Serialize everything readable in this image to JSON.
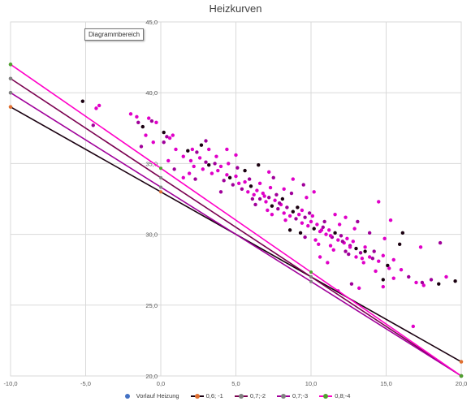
{
  "chart_data": {
    "type": "scatter",
    "title": "Heizkurven",
    "xlim": [
      -10,
      20
    ],
    "ylim": [
      20,
      45
    ],
    "x_ticks": [
      "-10,0",
      "-5,0",
      "0,0",
      "5,0",
      "10,0",
      "15,0",
      "20,0"
    ],
    "y_ticks": [
      "20,0",
      "25,0",
      "30,0",
      "35,0",
      "40,0",
      "45,0"
    ],
    "grid": true,
    "legend_position": "bottom",
    "series": [
      {
        "name": "Vorlauf Heizung",
        "kind": "scatter",
        "color": "#e000c8",
        "dark_color": "#1a0010",
        "mid_color": "#a0009a",
        "points": [
          [
            -5.2,
            39.4
          ],
          [
            -4.3,
            38.9
          ],
          [
            -4.1,
            39.1
          ],
          [
            -4.5,
            37.7
          ],
          [
            -2.0,
            38.5
          ],
          [
            -1.6,
            38.3
          ],
          [
            -1.5,
            37.9
          ],
          [
            -1.2,
            37.6
          ],
          [
            -0.8,
            38.2
          ],
          [
            -0.6,
            38.0
          ],
          [
            -1.0,
            37.0
          ],
          [
            -0.5,
            36.5
          ],
          [
            -1.3,
            36.2
          ],
          [
            -0.3,
            37.9
          ],
          [
            0.2,
            37.2
          ],
          [
            0.4,
            36.9
          ],
          [
            0.6,
            36.8
          ],
          [
            0.8,
            37.0
          ],
          [
            0.2,
            36.5
          ],
          [
            1.0,
            36.0
          ],
          [
            1.5,
            35.5
          ],
          [
            1.8,
            35.9
          ],
          [
            2.0,
            35.2
          ],
          [
            2.2,
            34.8
          ],
          [
            2.4,
            35.8
          ],
          [
            2.6,
            35.4
          ],
          [
            2.8,
            34.6
          ],
          [
            3.0,
            35.1
          ],
          [
            3.2,
            34.9
          ],
          [
            3.4,
            34.3
          ],
          [
            3.6,
            35.0
          ],
          [
            3.8,
            34.5
          ],
          [
            4.0,
            34.8
          ],
          [
            4.2,
            33.8
          ],
          [
            4.4,
            34.2
          ],
          [
            4.6,
            34.0
          ],
          [
            4.8,
            33.5
          ],
          [
            5.0,
            34.1
          ],
          [
            5.2,
            33.6
          ],
          [
            5.4,
            33.2
          ],
          [
            5.6,
            33.7
          ],
          [
            5.8,
            33.0
          ],
          [
            6.0,
            33.4
          ],
          [
            6.2,
            32.8
          ],
          [
            6.4,
            33.1
          ],
          [
            6.6,
            32.5
          ],
          [
            6.8,
            32.9
          ],
          [
            7.0,
            32.3
          ],
          [
            7.2,
            32.6
          ],
          [
            7.4,
            32.0
          ],
          [
            7.6,
            32.4
          ],
          [
            7.8,
            31.8
          ],
          [
            8.0,
            32.1
          ],
          [
            8.2,
            31.5
          ],
          [
            8.4,
            31.9
          ],
          [
            8.6,
            31.3
          ],
          [
            8.8,
            31.6
          ],
          [
            9.0,
            31.1
          ],
          [
            9.2,
            31.4
          ],
          [
            9.4,
            30.8
          ],
          [
            9.6,
            31.2
          ],
          [
            9.8,
            30.6
          ],
          [
            10.0,
            30.9
          ],
          [
            10.2,
            30.4
          ],
          [
            10.4,
            30.7
          ],
          [
            10.6,
            30.2
          ],
          [
            10.8,
            30.5
          ],
          [
            11.0,
            30.0
          ],
          [
            11.2,
            30.3
          ],
          [
            11.4,
            29.8
          ],
          [
            11.6,
            30.1
          ],
          [
            11.8,
            29.6
          ],
          [
            12.0,
            29.9
          ],
          [
            12.2,
            29.4
          ],
          [
            12.4,
            29.7
          ],
          [
            12.6,
            29.2
          ],
          [
            12.8,
            29.5
          ],
          [
            13.0,
            29.0
          ],
          [
            13.3,
            28.7
          ],
          [
            13.6,
            29.1
          ],
          [
            13.9,
            28.4
          ],
          [
            14.2,
            28.8
          ],
          [
            14.5,
            28.1
          ],
          [
            14.8,
            28.5
          ],
          [
            15.1,
            27.8
          ],
          [
            15.5,
            28.2
          ],
          [
            16.0,
            27.5
          ],
          [
            16.5,
            27.0
          ],
          [
            17.0,
            26.6
          ],
          [
            17.5,
            26.4
          ],
          [
            18.0,
            26.8
          ],
          [
            18.5,
            26.5
          ],
          [
            19.0,
            27.0
          ],
          [
            18.6,
            29.4
          ],
          [
            14.5,
            32.3
          ],
          [
            12.3,
            31.2
          ],
          [
            7.5,
            34.0
          ],
          [
            8.2,
            33.2
          ],
          [
            5.6,
            34.5
          ],
          [
            4.0,
            33.0
          ],
          [
            3.2,
            36.0
          ],
          [
            2.1,
            36.0
          ],
          [
            6.3,
            32.1
          ],
          [
            7.1,
            31.7
          ],
          [
            8.3,
            31.0
          ],
          [
            9.3,
            30.1
          ],
          [
            10.3,
            29.6
          ],
          [
            11.3,
            29.2
          ],
          [
            12.3,
            28.8
          ],
          [
            13.4,
            28.3
          ],
          [
            6.9,
            32.7
          ],
          [
            7.9,
            32.2
          ],
          [
            9.1,
            31.9
          ],
          [
            10.1,
            31.3
          ],
          [
            10.9,
            30.9
          ],
          [
            11.9,
            30.7
          ],
          [
            12.9,
            30.4
          ],
          [
            13.9,
            30.1
          ],
          [
            14.9,
            29.7
          ],
          [
            15.9,
            29.3
          ],
          [
            5.9,
            33.9
          ],
          [
            6.6,
            33.6
          ],
          [
            7.3,
            33.3
          ],
          [
            8.7,
            32.9
          ],
          [
            9.7,
            32.6
          ],
          [
            15.3,
            31.0
          ],
          [
            16.1,
            30.1
          ],
          [
            17.3,
            29.1
          ],
          [
            11.6,
            31.4
          ],
          [
            13.1,
            30.9
          ],
          [
            3.7,
            35.5
          ],
          [
            4.5,
            35.0
          ],
          [
            5.1,
            34.7
          ],
          [
            2.7,
            36.3
          ],
          [
            1.9,
            34.3
          ],
          [
            2.3,
            33.9
          ],
          [
            10.6,
            28.4
          ],
          [
            11.1,
            28.0
          ],
          [
            6.1,
            32.5
          ],
          [
            7.4,
            31.4
          ],
          [
            8.6,
            30.3
          ],
          [
            9.6,
            29.8
          ],
          [
            10.5,
            29.3
          ],
          [
            11.5,
            28.9
          ],
          [
            12.5,
            28.6
          ],
          [
            13.5,
            28.0
          ],
          [
            14.3,
            27.4
          ],
          [
            14.8,
            26.8
          ],
          [
            15.2,
            27.6
          ],
          [
            13.2,
            26.2
          ],
          [
            12.7,
            26.5
          ],
          [
            11.8,
            26.0
          ],
          [
            16.8,
            23.5
          ],
          [
            7.7,
            32.8
          ],
          [
            8.1,
            32.5
          ],
          [
            9.4,
            31.7
          ],
          [
            9.9,
            31.5
          ],
          [
            10.7,
            30.3
          ],
          [
            11.3,
            29.9
          ],
          [
            12.1,
            29.5
          ],
          [
            12.6,
            29.1
          ],
          [
            13.6,
            28.8
          ],
          [
            14.1,
            28.3
          ],
          [
            13.0,
            28.4
          ],
          [
            10.2,
            33.0
          ],
          [
            9.5,
            33.5
          ],
          [
            8.8,
            33.9
          ],
          [
            7.2,
            34.4
          ],
          [
            6.5,
            34.9
          ],
          [
            5.0,
            35.6
          ],
          [
            4.4,
            36.0
          ],
          [
            3.0,
            36.6
          ],
          [
            14.8,
            26.3
          ],
          [
            15.5,
            26.9
          ],
          [
            17.4,
            26.6
          ],
          [
            19.6,
            26.7
          ],
          [
            0.5,
            35.2
          ],
          [
            0.9,
            34.6
          ],
          [
            1.5,
            34.0
          ]
        ]
      },
      {
        "name": "0,6; -1",
        "kind": "line",
        "color": "#1a0010",
        "marker_color": "#e07030",
        "points": [
          [
            -10,
            39.0
          ],
          [
            20,
            21.0
          ]
        ]
      },
      {
        "name": "0,7;-2",
        "kind": "line",
        "color": "#7a0050",
        "marker_color": "#808080",
        "points": [
          [
            -10,
            41.0
          ],
          [
            20,
            20.0
          ]
        ]
      },
      {
        "name": "0,7;-3",
        "kind": "line",
        "color": "#a0009a",
        "marker_color": "#808080",
        "points": [
          [
            -10,
            40.0
          ],
          [
            20,
            20.0
          ]
        ]
      },
      {
        "name": "0,8;-4",
        "kind": "line",
        "color": "#ff00c8",
        "marker_color": "#50a030",
        "points": [
          [
            -10,
            42.0
          ],
          [
            20,
            20.0
          ]
        ]
      }
    ]
  },
  "legend": {
    "scatter_dot_color": "#4472c4"
  },
  "tooltip": {
    "label": "Diagrammbereich"
  }
}
